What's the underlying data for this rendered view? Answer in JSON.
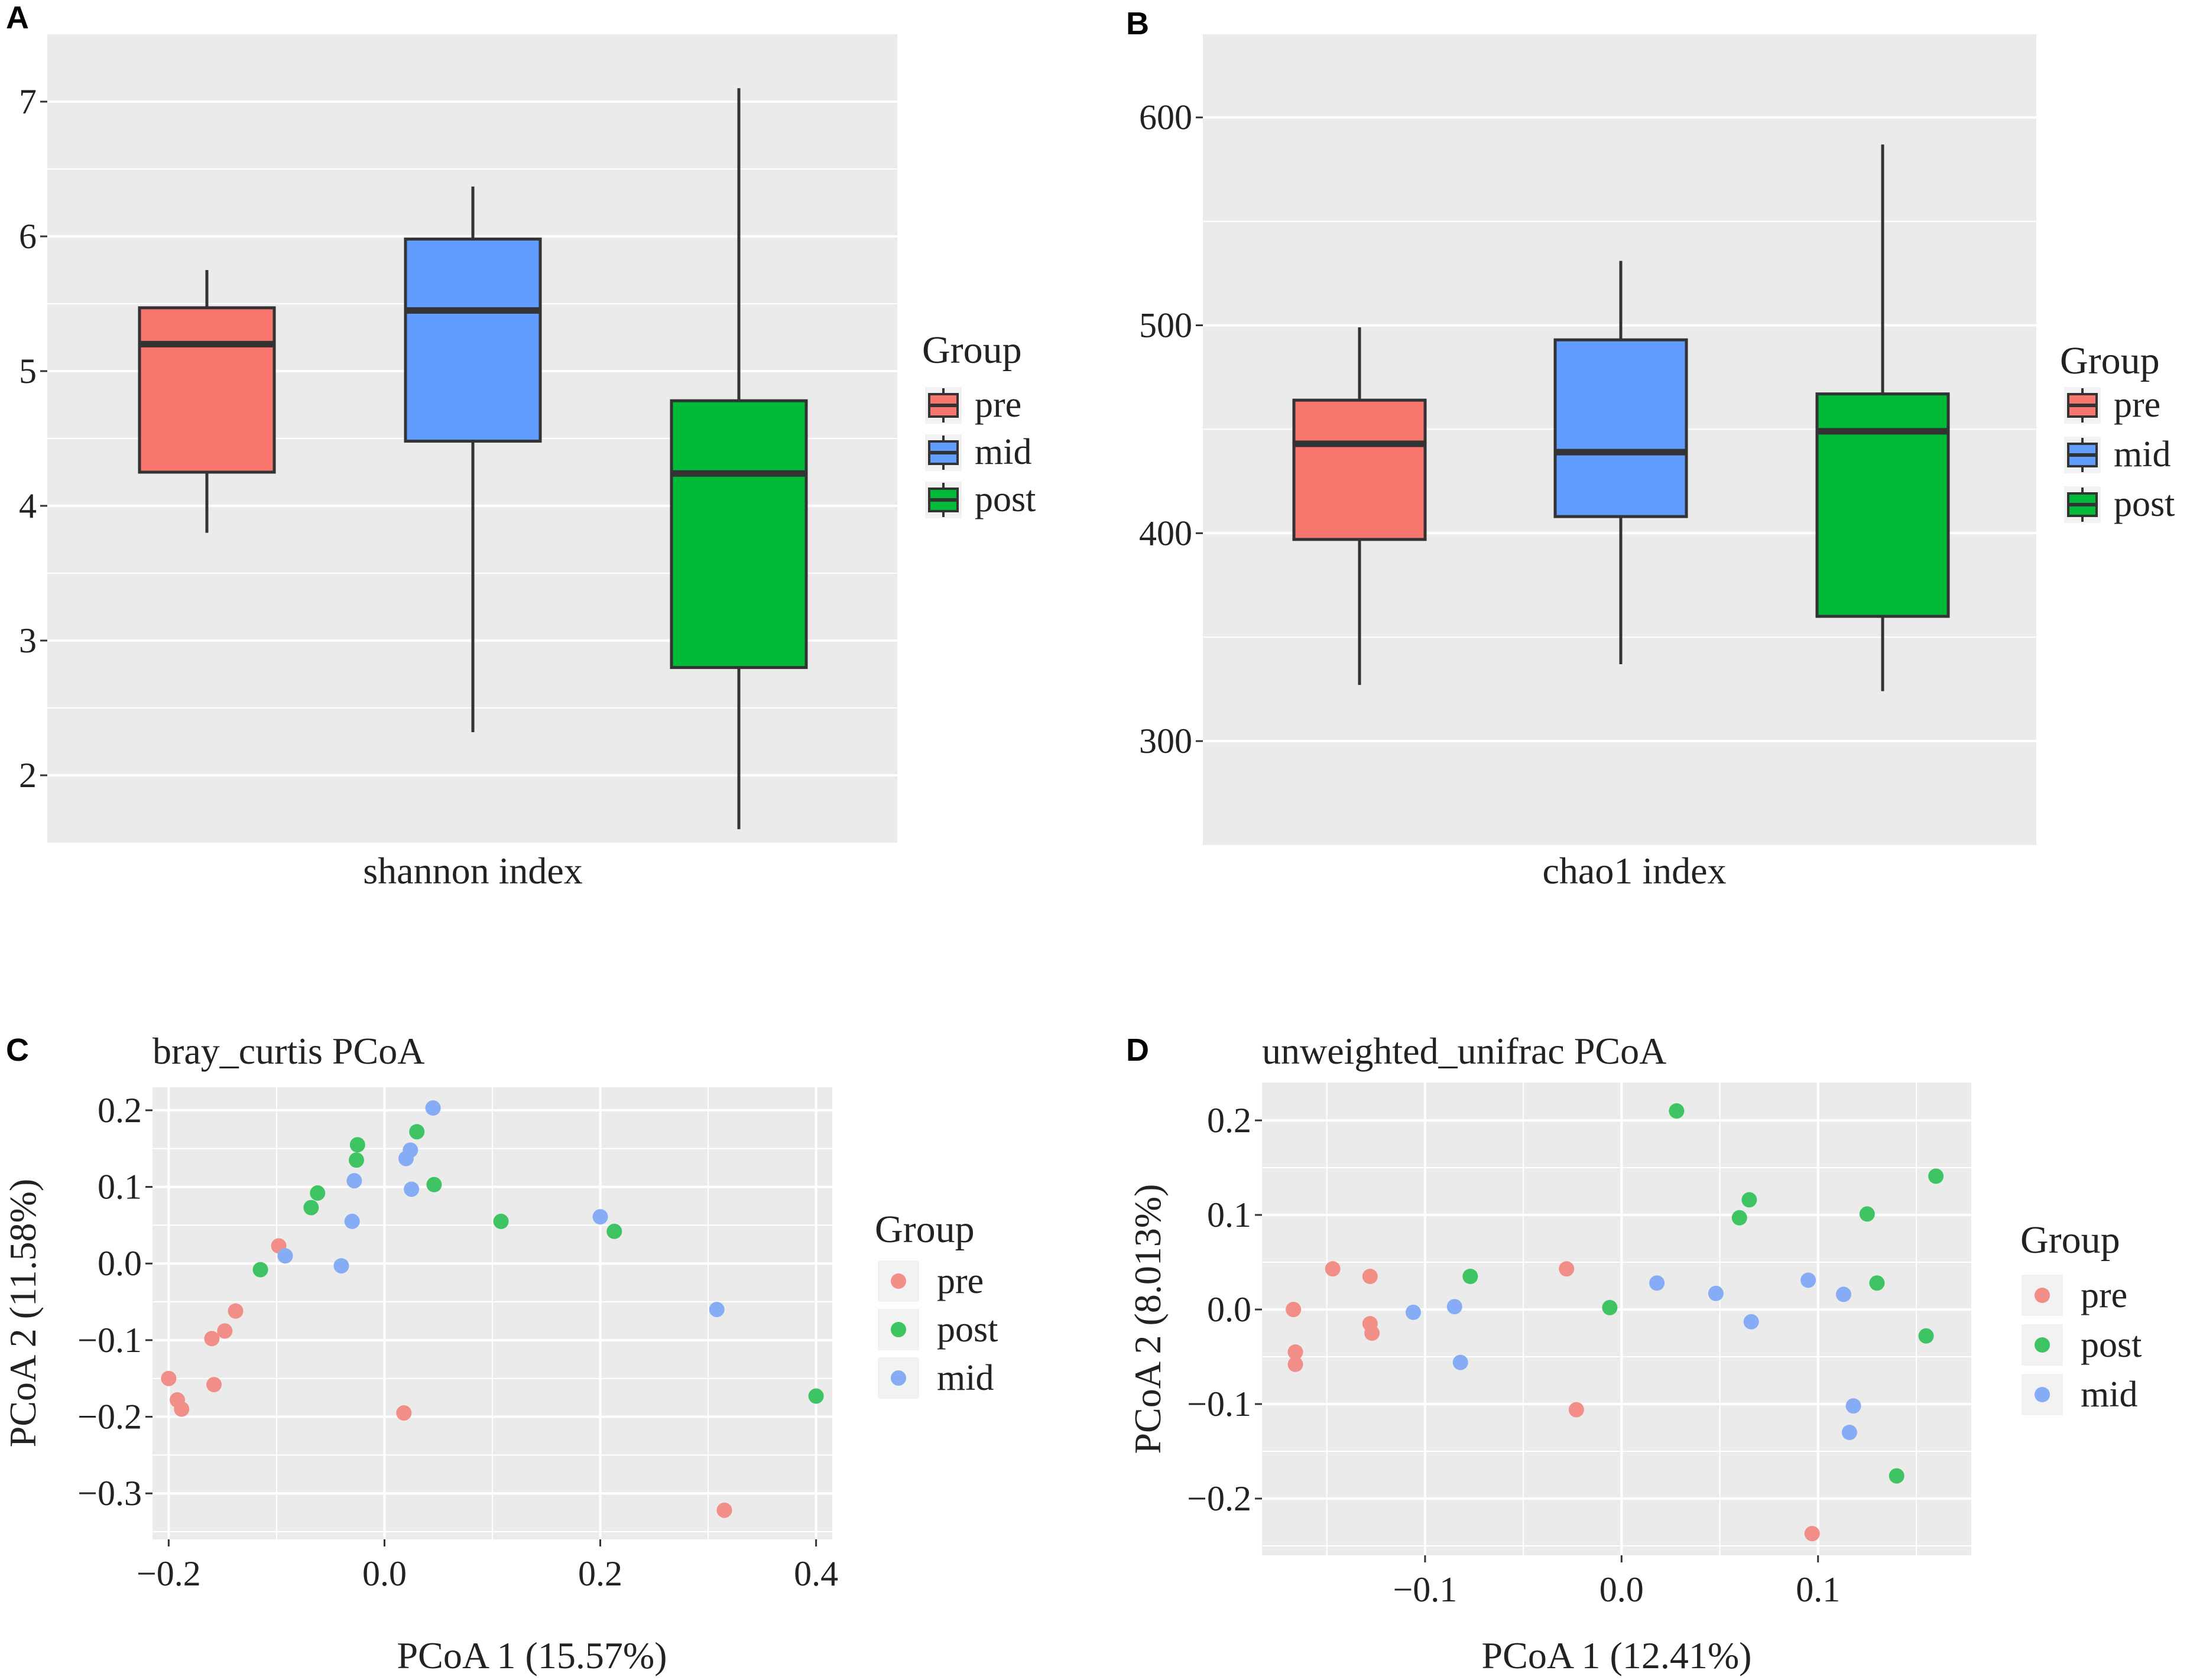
{
  "colors": {
    "panel_bg": "#ebebeb",
    "grid": "#ffffff",
    "box_pre": "#f8766d",
    "box_mid": "#619cff",
    "box_post": "#00ba38",
    "pt_pre": "#f28e88",
    "pt_post": "#3fc463",
    "pt_mid": "#86acf5",
    "line": "#333333"
  },
  "chart_data": [
    {
      "id": "A",
      "panel_label": "A",
      "type": "box",
      "xlabel": "shannon index",
      "ylim": [
        1.5,
        7.5
      ],
      "yticks": [
        2,
        3,
        4,
        5,
        6,
        7
      ],
      "ytick_labels": [
        "2",
        "3",
        "4",
        "5",
        "6",
        "7"
      ],
      "legend_title": "Group",
      "legend": [
        "pre",
        "mid",
        "post"
      ],
      "boxes": [
        {
          "group": "pre",
          "min": 3.8,
          "q1": 4.25,
          "median": 5.2,
          "q3": 5.47,
          "max": 5.75
        },
        {
          "group": "mid",
          "min": 2.32,
          "q1": 4.48,
          "median": 5.45,
          "q3": 5.98,
          "max": 6.37
        },
        {
          "group": "post",
          "min": 1.6,
          "q1": 2.8,
          "median": 4.24,
          "q3": 4.78,
          "max": 7.1
        }
      ]
    },
    {
      "id": "B",
      "panel_label": "B",
      "type": "box",
      "xlabel": "chao1 index",
      "ylim": [
        250,
        640
      ],
      "yticks": [
        300,
        400,
        500,
        600
      ],
      "ytick_labels": [
        "300",
        "400",
        "500",
        "600"
      ],
      "legend_title": "Group",
      "legend": [
        "pre",
        "mid",
        "post"
      ],
      "boxes": [
        {
          "group": "pre",
          "min": 327,
          "q1": 397,
          "median": 443,
          "q3": 464,
          "max": 499
        },
        {
          "group": "mid",
          "min": 337,
          "q1": 408,
          "median": 439,
          "q3": 493,
          "max": 531
        },
        {
          "group": "post",
          "min": 324,
          "q1": 360,
          "median": 449,
          "q3": 467,
          "max": 587
        }
      ]
    },
    {
      "id": "C",
      "panel_label": "C",
      "type": "scatter",
      "title": "bray_curtis PCoA",
      "xlabel": "PCoA 1 (15.57%)",
      "ylabel": "PCoA 2 (11.58%)",
      "xlim": [
        -0.215,
        0.415
      ],
      "ylim": [
        -0.36,
        0.23
      ],
      "xticks": [
        -0.2,
        0.0,
        0.2,
        0.4
      ],
      "xtick_labels": [
        "−0.2",
        "0.0",
        "0.2",
        "0.4"
      ],
      "yticks": [
        -0.3,
        -0.2,
        -0.1,
        0.0,
        0.1,
        0.2
      ],
      "ytick_labels": [
        "−0.3",
        "−0.2",
        "−0.1",
        "0.0",
        "0.1",
        "0.2"
      ],
      "legend_title": "Group",
      "legend": [
        "pre",
        "post",
        "mid"
      ],
      "series": [
        {
          "name": "pre",
          "points": [
            [
              -0.098,
              0.023
            ],
            [
              -0.138,
              -0.062
            ],
            [
              -0.148,
              -0.088
            ],
            [
              -0.16,
              -0.098
            ],
            [
              -0.158,
              -0.158
            ],
            [
              -0.2,
              -0.15
            ],
            [
              -0.192,
              -0.178
            ],
            [
              -0.188,
              -0.19
            ],
            [
              0.018,
              -0.195
            ],
            [
              0.315,
              -0.322
            ]
          ]
        },
        {
          "name": "post",
          "points": [
            [
              -0.025,
              0.155
            ],
            [
              -0.026,
              0.135
            ],
            [
              0.03,
              0.172
            ],
            [
              -0.062,
              0.092
            ],
            [
              -0.068,
              0.073
            ],
            [
              -0.115,
              -0.008
            ],
            [
              0.046,
              0.103
            ],
            [
              0.108,
              0.055
            ],
            [
              0.213,
              0.042
            ],
            [
              0.4,
              -0.173
            ]
          ]
        },
        {
          "name": "mid",
          "points": [
            [
              0.045,
              0.203
            ],
            [
              0.024,
              0.148
            ],
            [
              0.02,
              0.137
            ],
            [
              0.025,
              0.097
            ],
            [
              -0.028,
              0.108
            ],
            [
              -0.03,
              0.055
            ],
            [
              -0.092,
              0.01
            ],
            [
              -0.04,
              -0.003
            ],
            [
              0.2,
              0.061
            ],
            [
              0.308,
              -0.06
            ]
          ]
        }
      ]
    },
    {
      "id": "D",
      "panel_label": "D",
      "type": "scatter",
      "title": "unweighted_unifrac PCoA",
      "xlabel": "PCoA 1 (12.41%)",
      "ylabel": "PCoA 2 (8.013%)",
      "xlim": [
        -0.183,
        0.178
      ],
      "ylim": [
        -0.26,
        0.24
      ],
      "xticks": [
        -0.1,
        0.0,
        0.1
      ],
      "xtick_labels": [
        "−0.1",
        "0.0",
        "0.1"
      ],
      "yticks": [
        -0.2,
        -0.1,
        0.0,
        0.1,
        0.2
      ],
      "ytick_labels": [
        "−0.2",
        "−0.1",
        "0.0",
        "0.1",
        "0.2"
      ],
      "legend_title": "Group",
      "legend": [
        "pre",
        "post",
        "mid"
      ],
      "series": [
        {
          "name": "pre",
          "points": [
            [
              -0.167,
              0.0
            ],
            [
              -0.166,
              -0.045
            ],
            [
              -0.166,
              -0.058
            ],
            [
              -0.147,
              0.043
            ],
            [
              -0.128,
              0.035
            ],
            [
              -0.128,
              -0.015
            ],
            [
              -0.127,
              -0.025
            ],
            [
              -0.028,
              0.043
            ],
            [
              -0.023,
              -0.106
            ],
            [
              0.097,
              -0.237
            ]
          ]
        },
        {
          "name": "post",
          "points": [
            [
              0.028,
              0.21
            ],
            [
              0.065,
              0.116
            ],
            [
              0.06,
              0.097
            ],
            [
              0.125,
              0.101
            ],
            [
              0.16,
              0.141
            ],
            [
              0.13,
              0.028
            ],
            [
              0.155,
              -0.028
            ],
            [
              0.14,
              -0.176
            ],
            [
              -0.077,
              0.035
            ],
            [
              -0.006,
              0.002
            ]
          ]
        },
        {
          "name": "mid",
          "points": [
            [
              -0.106,
              -0.003
            ],
            [
              -0.085,
              0.003
            ],
            [
              -0.082,
              -0.056
            ],
            [
              0.018,
              0.028
            ],
            [
              0.048,
              0.017
            ],
            [
              0.066,
              -0.013
            ],
            [
              0.095,
              0.031
            ],
            [
              0.113,
              0.016
            ],
            [
              0.118,
              -0.102
            ],
            [
              0.116,
              -0.13
            ]
          ]
        }
      ]
    }
  ]
}
